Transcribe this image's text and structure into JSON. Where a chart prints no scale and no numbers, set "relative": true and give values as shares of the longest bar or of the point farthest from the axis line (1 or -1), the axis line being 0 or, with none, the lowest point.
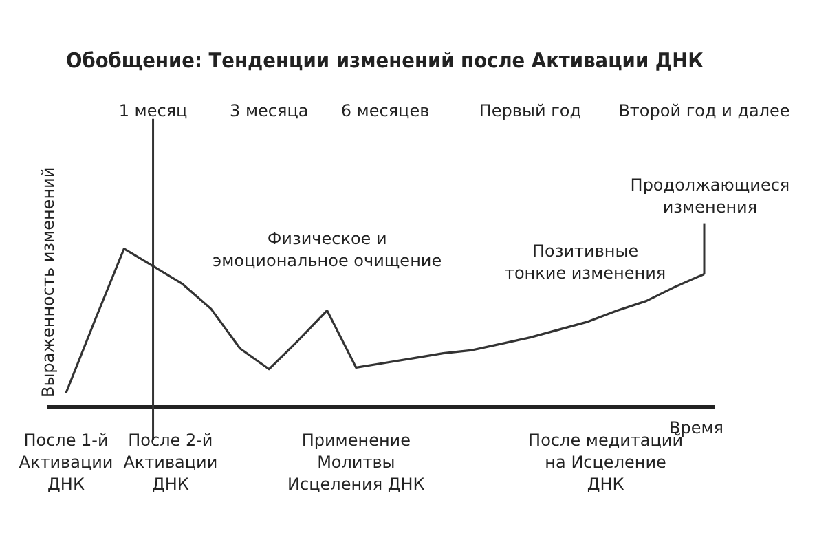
{
  "chart_data": {
    "type": "line",
    "title": "Обобщение: Тенденции изменений после Активации ДНК",
    "xlabel": "Время",
    "ylabel": "Выраженность изменений",
    "relative": true,
    "categories": [
      null,
      null,
      null,
      "1 месяц",
      null,
      null,
      null,
      "3 месяца",
      null,
      null,
      null,
      "6 месяцев",
      null,
      null,
      null,
      null,
      "Первый год",
      null,
      null,
      null,
      null,
      null,
      "Второй год и далее"
    ],
    "series": [
      {
        "color": "#333333",
        "values": [
          0.09,
          0.55,
          1,
          0.89,
          0.78,
          0.62,
          0.37,
          0.24,
          0.42,
          0.61,
          0.25,
          0.28,
          0.31,
          0.34,
          0.36,
          0.4,
          0.44,
          0.49,
          0.54,
          0.61,
          0.67,
          0.76,
          0.84
        ]
      }
    ],
    "ref_lines": [
      {
        "axis": "x",
        "value": "1 месяц",
        "color": "#333333"
      }
    ],
    "annotations": [
      "Физическое и\nэмоциональное очищение",
      "Позитивные\nтонкие изменения",
      "Продолжающиеся\nизменения",
      "После 1-й\nАктивации\nДНК",
      "После 2-й\nАктивации\nДНК",
      "Применение\nМолитвы\nИсцеления ДНК",
      "После медитаций\nна Исцеление\nДНК"
    ],
    "grid": false,
    "legend": false,
    "marker": "none",
    "line_style": "solid"
  }
}
